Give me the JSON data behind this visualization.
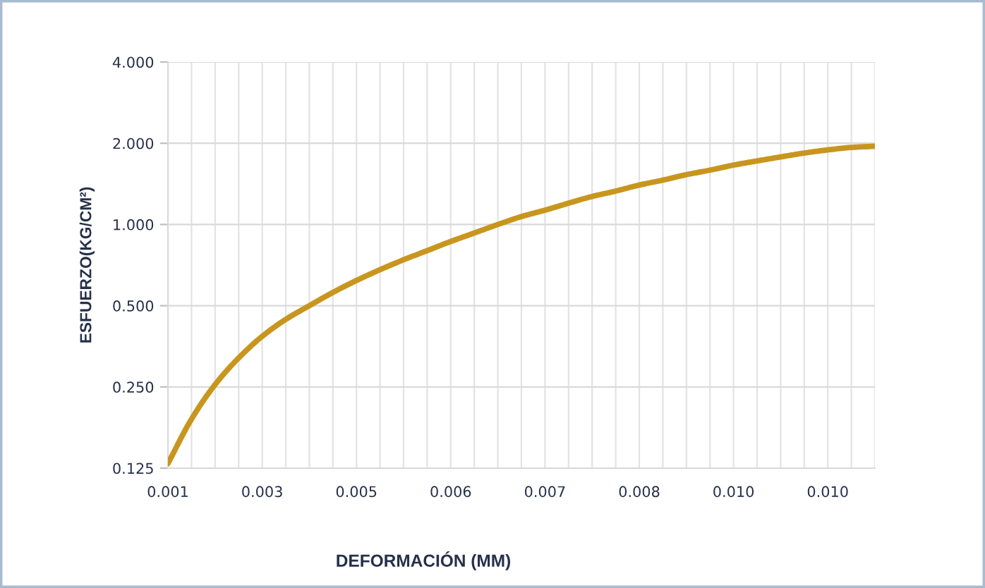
{
  "chart_data": {
    "type": "line",
    "xlabel": "DEFORMACIÓN (MM)",
    "ylabel": "ESFUERZO(KG/CM²)",
    "categories": [
      "0.001",
      null,
      null,
      null,
      "0.003",
      null,
      null,
      null,
      "0.005",
      null,
      null,
      null,
      "0.006",
      null,
      null,
      null,
      "0.007",
      null,
      null,
      null,
      "0.008",
      null,
      null,
      null,
      "0.010",
      null,
      null,
      null,
      "0.010",
      null,
      null
    ],
    "series": [
      {
        "color": "#c8961e",
        "values": [
          0.13,
          0.19,
          0.255,
          0.32,
          0.385,
          0.445,
          0.5,
          0.56,
          0.62,
          0.68,
          0.74,
          0.8,
          0.865,
          0.93,
          1.0,
          1.07,
          1.13,
          1.2,
          1.27,
          1.33,
          1.4,
          1.46,
          1.53,
          1.59,
          1.66,
          1.72,
          1.78,
          1.84,
          1.89,
          1.93,
          1.95
        ]
      }
    ],
    "ylim": [
      0.125,
      4
    ],
    "yticks": [
      {
        "value": 0.125,
        "label": "0.125"
      },
      {
        "value": 0.25,
        "label": "0.250"
      },
      {
        "value": 0.5,
        "label": "0.500"
      },
      {
        "value": 1,
        "label": "1.000"
      },
      {
        "value": 2,
        "label": "2.000"
      },
      {
        "value": 4,
        "label": "4.000"
      }
    ],
    "log": "y",
    "grid": true,
    "line_style": "solid"
  }
}
